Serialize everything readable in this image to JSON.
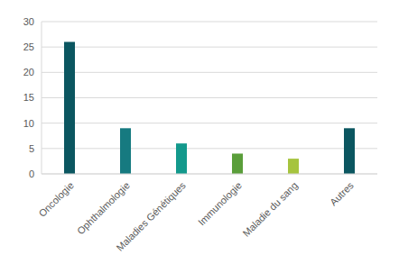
{
  "chart_data": {
    "type": "bar",
    "categories": [
      "Oncologie",
      "Ophthalmologie",
      "Maladies Génétiques",
      "Immunologie",
      "Maladie du sang",
      "Autres"
    ],
    "values": [
      26,
      9,
      6,
      4,
      3,
      9
    ],
    "colors": [
      "#0b5660",
      "#167a80",
      "#13998c",
      "#5a9e3a",
      "#a6c43e",
      "#0b5660"
    ],
    "ylim": [
      0,
      30
    ],
    "yticks": [
      0,
      5,
      10,
      15,
      20,
      25,
      30
    ],
    "grid": true
  }
}
